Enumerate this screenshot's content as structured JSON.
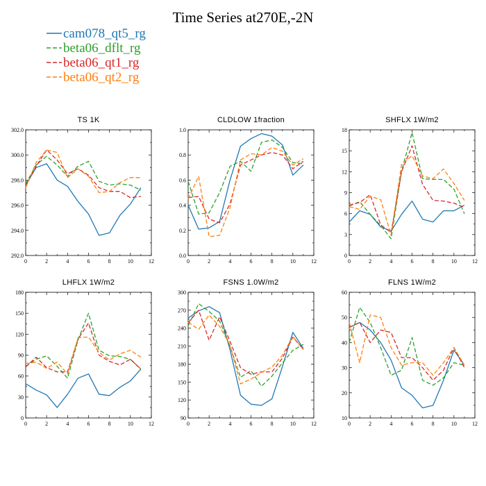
{
  "figure_title": "Time Series at270E,-2N",
  "legend": [
    {
      "label": "cam078_qt5_rg",
      "color": "#1f77b4",
      "dash": "solid"
    },
    {
      "label": "beta06_dflt_rg",
      "color": "#2ca02c",
      "dash": "dash"
    },
    {
      "label": "beta06_qt1_rg",
      "color": "#d62728",
      "dash": "dash"
    },
    {
      "label": "beta06_qt2_rg",
      "color": "#ff7f0e",
      "dash": "dash"
    }
  ],
  "chart_data": [
    {
      "type": "line",
      "title": "TS   1K",
      "x": [
        0,
        1,
        2,
        3,
        4,
        5,
        6,
        7,
        8,
        9,
        10,
        11
      ],
      "xlim": [
        0,
        12
      ],
      "xticks": [
        0,
        2,
        4,
        6,
        8,
        10,
        12
      ],
      "xtick_labels": [
        "0",
        "2",
        "4",
        "6",
        "8",
        "10",
        "12"
      ],
      "ylim": [
        292,
        302
      ],
      "yticks": [
        292,
        294,
        296,
        298,
        300,
        302
      ],
      "ytick_labels": [
        "292.0",
        "294.0",
        "296.0",
        "298.0",
        "300.0",
        "302.0"
      ],
      "series": [
        {
          "name": "cam078_qt5_rg",
          "values": [
            297.6,
            299.0,
            299.3,
            298.0,
            297.5,
            296.3,
            295.3,
            293.6,
            293.8,
            295.2,
            296.1,
            297.4
          ]
        },
        {
          "name": "beta06_dflt_rg",
          "values": [
            297.7,
            299.2,
            299.9,
            299.2,
            298.3,
            299.1,
            299.5,
            297.9,
            297.6,
            297.7,
            297.6,
            297.2
          ]
        },
        {
          "name": "beta06_qt1_rg",
          "values": [
            297.5,
            299.1,
            300.4,
            299.6,
            298.5,
            298.9,
            298.4,
            297.4,
            297.1,
            297.1,
            296.6,
            296.7
          ]
        },
        {
          "name": "beta06_qt2_rg",
          "values": [
            297.4,
            299.4,
            300.4,
            300.2,
            298.2,
            298.9,
            298.3,
            297.0,
            297.1,
            297.8,
            298.2,
            298.2
          ]
        }
      ]
    },
    {
      "type": "line",
      "title": "CLDLOW   1fraction",
      "x": [
        0,
        1,
        2,
        3,
        4,
        5,
        6,
        7,
        8,
        9,
        10,
        11
      ],
      "xlim": [
        0,
        12
      ],
      "xticks": [
        0,
        2,
        4,
        6,
        8,
        10,
        12
      ],
      "xtick_labels": [
        "0",
        "2",
        "4",
        "6",
        "8",
        "10",
        "12"
      ],
      "ylim": [
        0,
        1
      ],
      "yticks": [
        0,
        0.2,
        0.4,
        0.6,
        0.8,
        1.0
      ],
      "ytick_labels": [
        "0.0",
        "0.2",
        "0.4",
        "0.6",
        "0.8",
        "1.0"
      ],
      "series": [
        {
          "name": "cam078_qt5_rg",
          "values": [
            0.4,
            0.21,
            0.22,
            0.27,
            0.6,
            0.87,
            0.93,
            0.97,
            0.95,
            0.88,
            0.64,
            0.72
          ]
        },
        {
          "name": "beta06_dflt_rg",
          "values": [
            0.59,
            0.33,
            0.34,
            0.5,
            0.71,
            0.75,
            0.67,
            0.9,
            0.92,
            0.86,
            0.74,
            0.73
          ]
        },
        {
          "name": "beta06_qt1_rg",
          "values": [
            0.46,
            0.47,
            0.29,
            0.26,
            0.41,
            0.72,
            0.76,
            0.8,
            0.82,
            0.8,
            0.69,
            0.75
          ]
        },
        {
          "name": "beta06_qt2_rg",
          "values": [
            0.45,
            0.63,
            0.15,
            0.16,
            0.38,
            0.76,
            0.81,
            0.8,
            0.86,
            0.83,
            0.72,
            0.77
          ]
        }
      ]
    },
    {
      "type": "line",
      "title": "SHFLX   1W/m2",
      "x": [
        0,
        1,
        2,
        3,
        4,
        5,
        6,
        7,
        8,
        9,
        10,
        11
      ],
      "xlim": [
        0,
        12
      ],
      "xticks": [
        0,
        2,
        4,
        6,
        8,
        10,
        12
      ],
      "xtick_labels": [
        "0",
        "2",
        "4",
        "6",
        "8",
        "10",
        "12"
      ],
      "ylim": [
        0,
        18
      ],
      "yticks": [
        0,
        3,
        6,
        9,
        12,
        15,
        18
      ],
      "ytick_labels": [
        "0",
        "3",
        "6",
        "9",
        "12",
        "15",
        "18"
      ],
      "series": [
        {
          "name": "cam078_qt5_rg",
          "values": [
            4.8,
            6.4,
            5.9,
            4.1,
            3.5,
            5.9,
            7.8,
            5.2,
            4.8,
            6.4,
            6.4,
            7.2
          ]
        },
        {
          "name": "beta06_dflt_rg",
          "values": [
            7.1,
            7.7,
            5.9,
            4.3,
            2.4,
            12.1,
            17.6,
            11.0,
            10.9,
            10.9,
            9.5,
            6.0
          ]
        },
        {
          "name": "beta06_qt1_rg",
          "values": [
            7.2,
            7.6,
            8.7,
            4.4,
            3.3,
            12.0,
            15.7,
            10.2,
            7.9,
            7.8,
            7.5,
            6.9
          ]
        },
        {
          "name": "beta06_qt2_rg",
          "values": [
            7.0,
            6.6,
            8.5,
            8.0,
            2.9,
            13.1,
            14.3,
            11.4,
            11.0,
            12.4,
            10.3,
            7.9
          ]
        }
      ]
    },
    {
      "type": "line",
      "title": "LHFLX   1W/m2",
      "x": [
        0,
        1,
        2,
        3,
        4,
        5,
        6,
        7,
        8,
        9,
        10,
        11
      ],
      "xlim": [
        0,
        12
      ],
      "xticks": [
        0,
        2,
        4,
        6,
        8,
        10,
        12
      ],
      "xtick_labels": [
        "0",
        "2",
        "4",
        "6",
        "8",
        "10",
        "12"
      ],
      "ylim": [
        0,
        180
      ],
      "yticks": [
        0,
        30,
        60,
        90,
        120,
        150,
        180
      ],
      "ytick_labels": [
        "0",
        "30",
        "60",
        "90",
        "120",
        "150",
        "180"
      ],
      "series": [
        {
          "name": "cam078_qt5_rg",
          "values": [
            49,
            40,
            33,
            15,
            34,
            57,
            63,
            34,
            32,
            44,
            53,
            70
          ]
        },
        {
          "name": "beta06_dflt_rg",
          "values": [
            74,
            84,
            89,
            74,
            57,
            112,
            150,
            97,
            89,
            88,
            84,
            70
          ]
        },
        {
          "name": "beta06_qt1_rg",
          "values": [
            73,
            87,
            72,
            66,
            66,
            113,
            136,
            90,
            81,
            76,
            84,
            70
          ]
        },
        {
          "name": "beta06_qt2_rg",
          "values": [
            78,
            80,
            71,
            80,
            63,
            115,
            116,
            94,
            83,
            92,
            97,
            87
          ]
        }
      ]
    },
    {
      "type": "line",
      "title": "FSNS   1.0W/m2",
      "x": [
        0,
        1,
        2,
        3,
        4,
        5,
        6,
        7,
        8,
        9,
        10,
        11
      ],
      "xlim": [
        0,
        12
      ],
      "xticks": [
        0,
        2,
        4,
        6,
        8,
        10,
        12
      ],
      "xtick_labels": [
        "0",
        "2",
        "4",
        "6",
        "8",
        "10",
        "12"
      ],
      "ylim": [
        90,
        300
      ],
      "yticks": [
        90,
        120,
        150,
        180,
        210,
        240,
        270,
        300
      ],
      "ytick_labels": [
        "90",
        "120",
        "150",
        "180",
        "210",
        "240",
        "270",
        "300"
      ],
      "series": [
        {
          "name": "cam078_qt5_rg",
          "values": [
            257,
            269,
            276,
            266,
            204,
            128,
            113,
            111,
            122,
            176,
            233,
            206
          ]
        },
        {
          "name": "beta06_dflt_rg",
          "values": [
            244,
            281,
            268,
            252,
            210,
            158,
            169,
            143,
            160,
            182,
            203,
            213
          ]
        },
        {
          "name": "beta06_qt1_rg",
          "values": [
            249,
            270,
            220,
            259,
            218,
            174,
            163,
            167,
            167,
            190,
            225,
            205
          ]
        },
        {
          "name": "beta06_qt2_rg",
          "values": [
            250,
            238,
            262,
            243,
            212,
            147,
            155,
            166,
            175,
            195,
            226,
            204
          ]
        }
      ]
    },
    {
      "type": "line",
      "title": "FLNS   1W/m2",
      "x": [
        0,
        1,
        2,
        3,
        4,
        5,
        6,
        7,
        8,
        9,
        10,
        11
      ],
      "xlim": [
        0,
        12
      ],
      "xticks": [
        0,
        2,
        4,
        6,
        8,
        10,
        12
      ],
      "xtick_labels": [
        "0",
        "2",
        "4",
        "6",
        "8",
        "10",
        "12"
      ],
      "ylim": [
        10,
        60
      ],
      "yticks": [
        10,
        20,
        30,
        40,
        50,
        60
      ],
      "ytick_labels": [
        "10",
        "20",
        "30",
        "40",
        "50",
        "60"
      ],
      "series": [
        {
          "name": "cam078_qt5_rg",
          "values": [
            46,
            48,
            45,
            40,
            33,
            22,
            19,
            14,
            15,
            25,
            37,
            31
          ]
        },
        {
          "name": "beta06_dflt_rg",
          "values": [
            40,
            54,
            48,
            38,
            27,
            29,
            42,
            25,
            23,
            26,
            32,
            31
          ]
        },
        {
          "name": "beta06_qt1_rg",
          "values": [
            46,
            48,
            40,
            45,
            44,
            34,
            34,
            30,
            25,
            29,
            38,
            30
          ]
        },
        {
          "name": "beta06_qt2_rg",
          "values": [
            48,
            32,
            51,
            50,
            38,
            31,
            32,
            32,
            27,
            32,
            38,
            31
          ]
        }
      ]
    }
  ]
}
